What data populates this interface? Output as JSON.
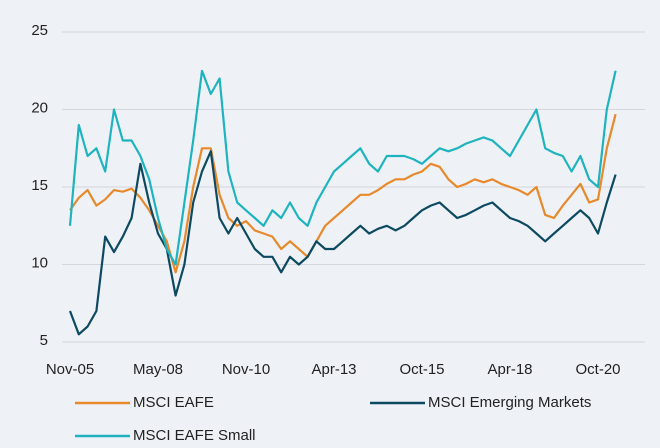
{
  "chart_data": {
    "type": "line",
    "categories": [
      "Nov-05",
      null,
      null,
      null,
      null,
      null,
      null,
      null,
      null,
      null,
      "May-08",
      null,
      null,
      null,
      null,
      null,
      null,
      null,
      null,
      null,
      "Nov-10",
      null,
      null,
      null,
      null,
      null,
      null,
      null,
      null,
      null,
      "Apr-13",
      null,
      null,
      null,
      null,
      null,
      null,
      null,
      null,
      null,
      "Oct-15",
      null,
      null,
      null,
      null,
      null,
      null,
      null,
      null,
      null,
      "Apr-18",
      null,
      null,
      null,
      null,
      null,
      null,
      null,
      null,
      null,
      "Oct-20",
      null,
      null
    ],
    "series": [
      {
        "name": "MSCI EAFE",
        "color": "#e8892b",
        "values": [
          13.5,
          14.3,
          14.8,
          13.8,
          14.2,
          14.8,
          14.7,
          14.9,
          14.3,
          13.5,
          12.5,
          11.5,
          9.5,
          11.5,
          15,
          17.5,
          17.5,
          14.5,
          13,
          12.5,
          12.8,
          12.2,
          12,
          11.8,
          11,
          11.5,
          11,
          10.5,
          11.5,
          12.5,
          13,
          13.5,
          14,
          14.5,
          14.5,
          14.8,
          15.2,
          15.5,
          15.5,
          15.8,
          16,
          16.5,
          16.3,
          15.5,
          15,
          15.2,
          15.5,
          15.3,
          15.5,
          15.2,
          15,
          14.8,
          14.5,
          15,
          13.2,
          13,
          13.8,
          14.5,
          15.2,
          14,
          14.2,
          17.5,
          19.7
        ]
      },
      {
        "name": "MSCI Emerging Markets",
        "color": "#0d4a62",
        "values": [
          7,
          5.5,
          6,
          7,
          11.8,
          10.8,
          11.8,
          13,
          16.5,
          14,
          12,
          11,
          8,
          10,
          14,
          16,
          17.3,
          13,
          12,
          13,
          12,
          11,
          10.5,
          10.5,
          9.5,
          10.5,
          10,
          10.5,
          11.5,
          11,
          11,
          11.5,
          12,
          12.5,
          12,
          12.3,
          12.5,
          12.2,
          12.5,
          13,
          13.5,
          13.8,
          14,
          13.5,
          13,
          13.2,
          13.5,
          13.8,
          14,
          13.5,
          13,
          12.8,
          12.5,
          12,
          11.5,
          12,
          12.5,
          13,
          13.5,
          13,
          12,
          14,
          15.8
        ]
      },
      {
        "name": "MSCI EAFE Small",
        "color": "#1fb3c0",
        "values": [
          12.5,
          19,
          17,
          17.5,
          16,
          20,
          18,
          18,
          17,
          15.5,
          13,
          11,
          10,
          14,
          18,
          22.5,
          21,
          22,
          16,
          14,
          13.5,
          13,
          12.5,
          13.5,
          13,
          14,
          13,
          12.5,
          14,
          15,
          16,
          16.5,
          17,
          17.5,
          16.5,
          16,
          17,
          17,
          17,
          16.8,
          16.5,
          17,
          17.5,
          17.3,
          17.5,
          17.8,
          18,
          18.2,
          18,
          17.5,
          17,
          18,
          19,
          20,
          17.5,
          17.2,
          17,
          16,
          17,
          15.5,
          15,
          20,
          22.5
        ]
      }
    ],
    "ylim": [
      5,
      25
    ],
    "yticks": [
      5,
      10,
      15,
      20,
      25
    ],
    "grid": true
  }
}
